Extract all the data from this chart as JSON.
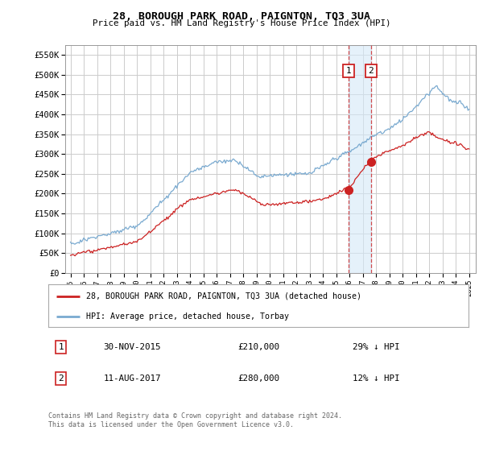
{
  "title": "28, BOROUGH PARK ROAD, PAIGNTON, TQ3 3UA",
  "subtitle": "Price paid vs. HM Land Registry's House Price Index (HPI)",
  "background_color": "#ffffff",
  "plot_bg_color": "#ffffff",
  "grid_color": "#cccccc",
  "ylim": [
    0,
    575000
  ],
  "yticks": [
    0,
    50000,
    100000,
    150000,
    200000,
    250000,
    300000,
    350000,
    400000,
    450000,
    500000,
    550000
  ],
  "hpi_color": "#7aaad0",
  "price_color": "#cc2222",
  "sale1_year": 2015.917,
  "sale1_price": 210000,
  "sale1_date": "30-NOV-2015",
  "sale1_pct": "29% ↓ HPI",
  "sale2_year": 2017.617,
  "sale2_price": 280000,
  "sale2_date": "11-AUG-2017",
  "sale2_pct": "12% ↓ HPI",
  "legend_label_price": "28, BOROUGH PARK ROAD, PAIGNTON, TQ3 3UA (detached house)",
  "legend_label_hpi": "HPI: Average price, detached house, Torbay",
  "footer": "Contains HM Land Registry data © Crown copyright and database right 2024.\nThis data is licensed under the Open Government Licence v3.0."
}
